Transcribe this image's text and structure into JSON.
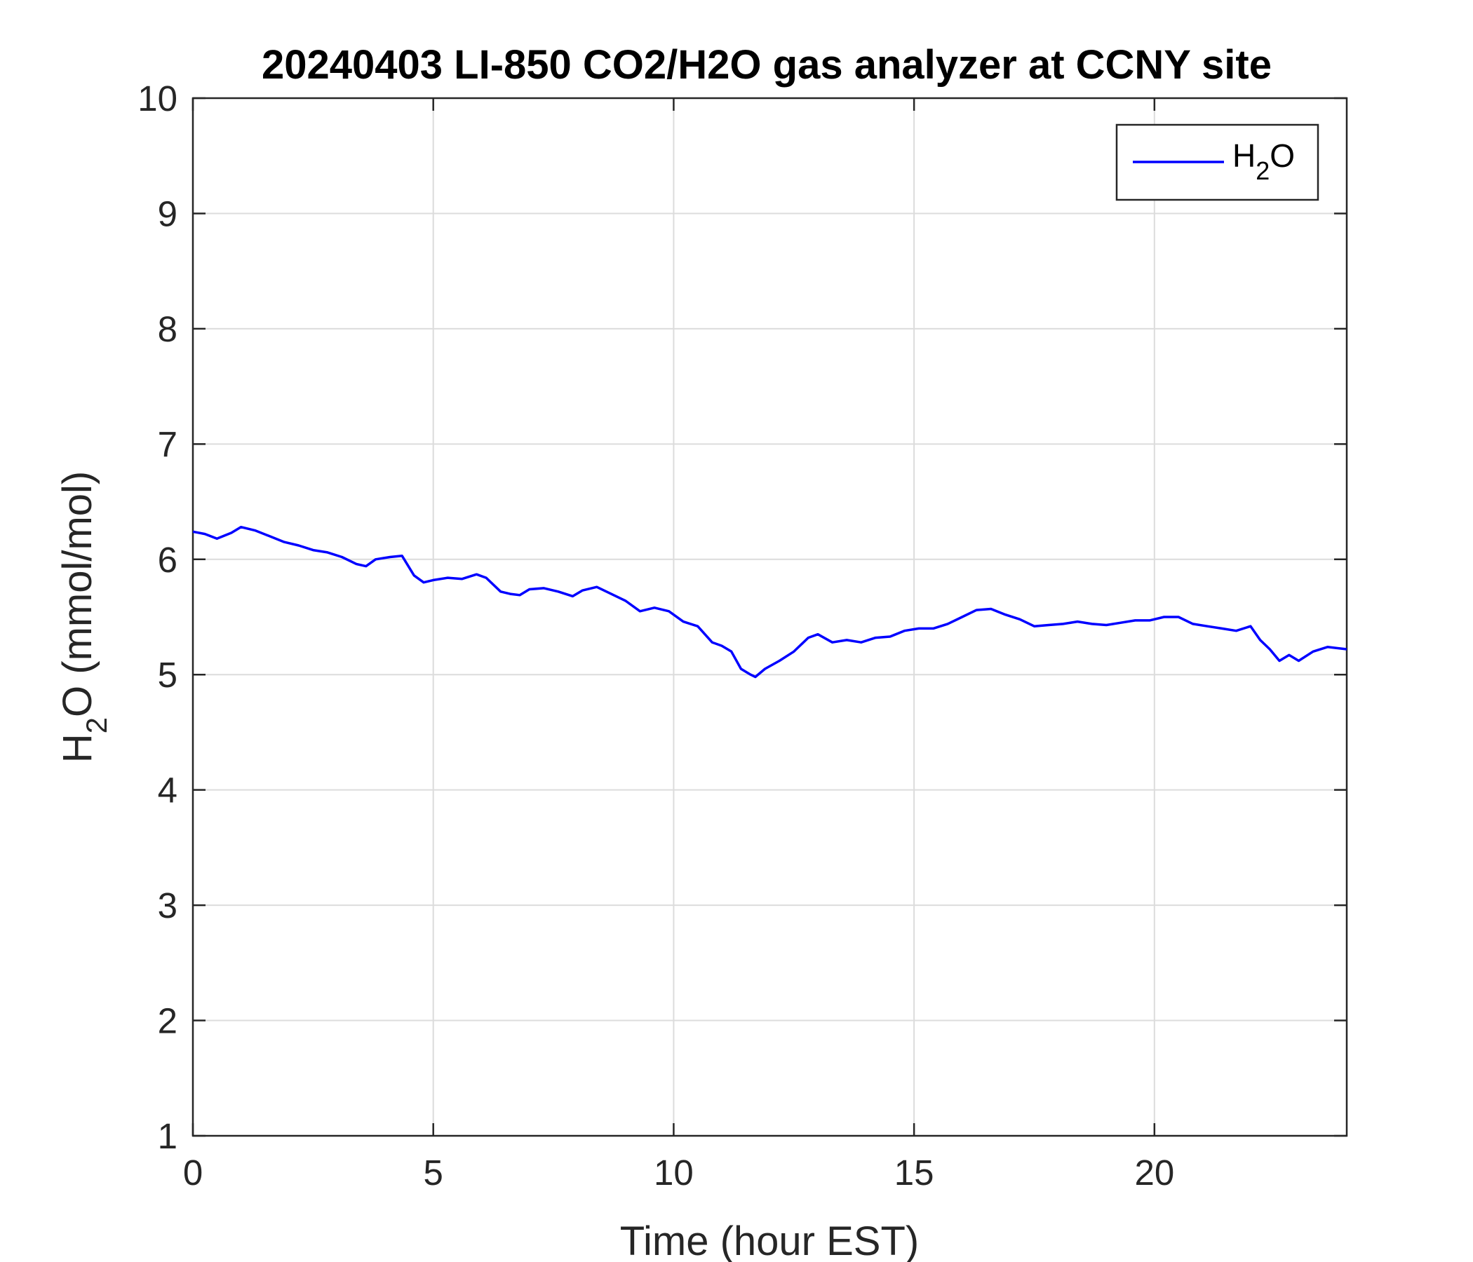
{
  "chart_data": {
    "type": "line",
    "title": "20240403 LI-850 CO2/H2O gas analyzer at CCNY site",
    "xlabel": "Time (hour EST)",
    "ylabel": {
      "base": "H",
      "sub": "2",
      "rest": "O (mmol/mol)"
    },
    "xlim": [
      0,
      24
    ],
    "ylim": [
      1,
      10
    ],
    "xticks": [
      0,
      5,
      10,
      15,
      20
    ],
    "yticks": [
      1,
      2,
      3,
      4,
      5,
      6,
      7,
      8,
      9,
      10
    ],
    "grid": true,
    "legend_position": "top-right",
    "series": [
      {
        "name": {
          "base": "H",
          "sub": "2",
          "rest": "O"
        },
        "color": "#0000ff",
        "x": [
          0,
          0.25,
          0.5,
          0.8,
          1.0,
          1.3,
          1.6,
          1.9,
          2.2,
          2.5,
          2.8,
          3.1,
          3.4,
          3.6,
          3.8,
          4.1,
          4.35,
          4.6,
          4.8,
          5.0,
          5.3,
          5.6,
          5.9,
          6.1,
          6.4,
          6.6,
          6.8,
          7.0,
          7.3,
          7.6,
          7.9,
          8.1,
          8.4,
          8.7,
          9.0,
          9.3,
          9.6,
          9.9,
          10.2,
          10.5,
          10.8,
          11.0,
          11.2,
          11.4,
          11.6,
          11.7,
          11.9,
          12.2,
          12.5,
          12.8,
          13.0,
          13.3,
          13.6,
          13.9,
          14.2,
          14.5,
          14.8,
          15.1,
          15.4,
          15.7,
          16.0,
          16.3,
          16.6,
          16.9,
          17.2,
          17.5,
          17.8,
          18.1,
          18.4,
          18.7,
          19.0,
          19.3,
          19.6,
          19.9,
          20.2,
          20.5,
          20.8,
          21.1,
          21.4,
          21.7,
          22.0,
          22.2,
          22.4,
          22.6,
          22.8,
          23.0,
          23.3,
          23.6,
          24.0
        ],
        "y": [
          6.24,
          6.22,
          6.18,
          6.23,
          6.28,
          6.25,
          6.2,
          6.15,
          6.12,
          6.08,
          6.06,
          6.02,
          5.96,
          5.94,
          6.0,
          6.02,
          6.03,
          5.86,
          5.8,
          5.82,
          5.84,
          5.83,
          5.87,
          5.84,
          5.72,
          5.7,
          5.69,
          5.74,
          5.75,
          5.72,
          5.68,
          5.73,
          5.76,
          5.7,
          5.64,
          5.55,
          5.58,
          5.55,
          5.46,
          5.42,
          5.28,
          5.25,
          5.2,
          5.05,
          5.0,
          4.98,
          5.05,
          5.12,
          5.2,
          5.32,
          5.35,
          5.28,
          5.3,
          5.28,
          5.32,
          5.33,
          5.38,
          5.4,
          5.4,
          5.44,
          5.5,
          5.56,
          5.57,
          5.52,
          5.48,
          5.42,
          5.43,
          5.44,
          5.46,
          5.44,
          5.43,
          5.45,
          5.47,
          5.47,
          5.5,
          5.5,
          5.44,
          5.42,
          5.4,
          5.38,
          5.42,
          5.3,
          5.22,
          5.12,
          5.17,
          5.12,
          5.2,
          5.24,
          5.22
        ]
      }
    ]
  }
}
